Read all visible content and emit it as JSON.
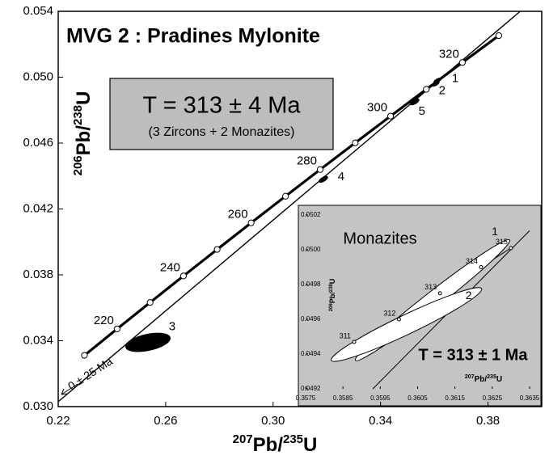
{
  "chart_data": [
    {
      "type": "concordia",
      "title": "MVG 2 : Pradines Mylonite",
      "age_box": {
        "result": "T = 313 ± 4 Ma",
        "note": "(3 Zircons + 2 Monazites)"
      },
      "x_label": [
        "207",
        "Pb/",
        "235",
        "U"
      ],
      "y_label": [
        "206",
        "Pb/",
        "238",
        "U"
      ],
      "xlim": [
        0.22,
        0.4
      ],
      "ylim": [
        0.03,
        0.054
      ],
      "xticks": [
        0.22,
        0.26,
        {
          "value": 0.3,
          "label": "0.30"
        },
        0.34,
        0.38
      ],
      "yticks": [
        {
          "value": 0.03,
          "label": "0.030"
        },
        {
          "value": 0.034,
          "label": "0.034"
        },
        {
          "value": 0.038,
          "label": "0.038"
        },
        {
          "value": 0.042,
          "label": "0.042"
        },
        {
          "value": 0.046,
          "label": "0.046"
        },
        {
          "value": 0.05,
          "label": "0.050"
        },
        {
          "value": 0.054,
          "label": "0.054"
        }
      ],
      "concordia": {
        "x": [
          0.22976,
          0.24193,
          0.25422,
          0.26663,
          0.27917,
          0.29183,
          0.30461,
          0.31752,
          0.33056,
          0.34373,
          0.35703,
          0.37046,
          0.38402
        ],
        "y": [
          0.033113,
          0.034716,
          0.036323,
          0.037932,
          0.039543,
          0.041157,
          0.042773,
          0.044392,
          0.046014,
          0.047637,
          0.049264,
          0.050893,
          0.052524
        ],
        "age_labels": [
          null,
          220,
          null,
          240,
          null,
          260,
          null,
          280,
          null,
          300,
          null,
          320,
          null
        ]
      },
      "discordia": {
        "x": [
          0.22,
          0.392
        ],
        "y": [
          0.0303,
          0.054
        ]
      },
      "lower_intercept": "0 ± 25 Ma",
      "ellipses": {
        "labels": [
          "1",
          "2",
          "3",
          "4",
          "5"
        ],
        "x": [
          0.3612,
          0.3605,
          0.2534,
          0.3187,
          0.3527
        ],
        "y": [
          0.0498,
          0.0496,
          0.0339,
          0.0438,
          0.0485
        ]
      }
    },
    {
      "type": "concordia",
      "title": "Monazites",
      "age_box": {
        "result": "T = 313 ± 1 Ma"
      },
      "x_label": [
        "207",
        "Pb/",
        "235",
        "U"
      ],
      "y_label": [
        "206",
        "Pb/",
        "238",
        "U"
      ],
      "xlim": [
        0.3575,
        0.3635
      ],
      "ylim": [
        0.0492,
        0.0502
      ],
      "xticks": [
        0.3575,
        0.3585,
        0.3595,
        0.3605,
        0.3615,
        0.3625,
        0.3635
      ],
      "yticks": [
        0.0492,
        0.0494,
        0.0496,
        0.0498,
        {
          "value": 0.05,
          "label": "0.0500"
        },
        0.0502
      ],
      "concordia": {
        "x": [
          0.3588,
          0.36,
          0.3611,
          0.3622,
          0.363
        ],
        "y": [
          0.04947,
          0.0496,
          0.04975,
          0.0499,
          0.05001
        ],
        "age_labels": [
          311,
          312,
          313,
          314,
          315
        ]
      },
      "discordia": {
        "x": [
          0.3593,
          0.3635
        ],
        "y": [
          0.0492,
          0.05011
        ]
      },
      "ellipses": {
        "labels": [
          "1",
          "2"
        ],
        "x": [
          0.3609,
          0.3602
        ],
        "y": [
          0.04971,
          0.04957
        ]
      }
    }
  ]
}
